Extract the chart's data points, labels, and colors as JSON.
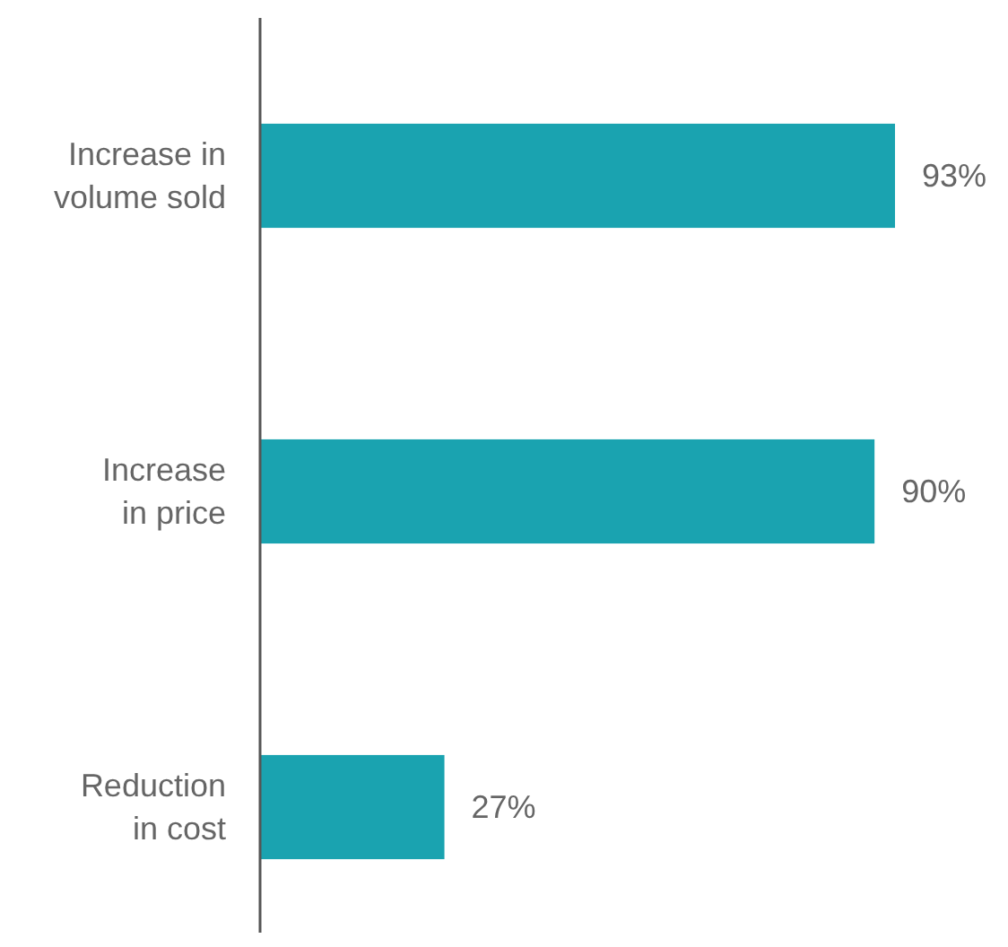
{
  "chart_data": {
    "type": "bar",
    "orientation": "horizontal",
    "categories": [
      "Increase in\nvolume sold",
      "Increase\nin price",
      "Reduction\nin cost"
    ],
    "values": [
      93,
      90,
      27
    ],
    "color": "#1aa3b0",
    "value_labels": [
      "93%",
      "90%",
      "27%"
    ]
  }
}
